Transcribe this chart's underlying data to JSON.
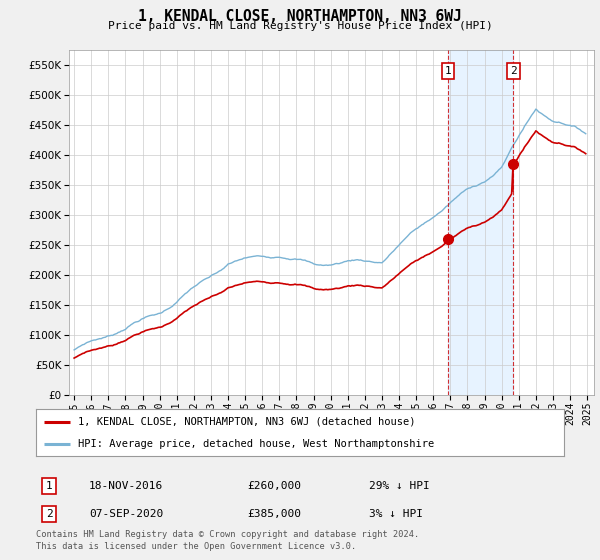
{
  "title": "1, KENDAL CLOSE, NORTHAMPTON, NN3 6WJ",
  "subtitle": "Price paid vs. HM Land Registry's House Price Index (HPI)",
  "hpi_color": "#7ab3d4",
  "price_color": "#cc0000",
  "shade_color": "#ddeeff",
  "background_color": "#f0f0f0",
  "plot_bg_color": "#ffffff",
  "ylim": [
    0,
    575000
  ],
  "yticks": [
    0,
    50000,
    100000,
    150000,
    200000,
    250000,
    300000,
    350000,
    400000,
    450000,
    500000,
    550000
  ],
  "transaction1": {
    "price": 260000,
    "label": "18-NOV-2016",
    "pct": "29% ↓ HPI",
    "x": 2016.88
  },
  "transaction2": {
    "price": 385000,
    "label": "07-SEP-2020",
    "pct": "3% ↓ HPI",
    "x": 2020.69
  },
  "legend_entry1": "1, KENDAL CLOSE, NORTHAMPTON, NN3 6WJ (detached house)",
  "legend_entry2": "HPI: Average price, detached house, West Northamptonshire",
  "footnote1": "Contains HM Land Registry data © Crown copyright and database right 2024.",
  "footnote2": "This data is licensed under the Open Government Licence v3.0.",
  "marker_label1": "1",
  "marker_label2": "2"
}
